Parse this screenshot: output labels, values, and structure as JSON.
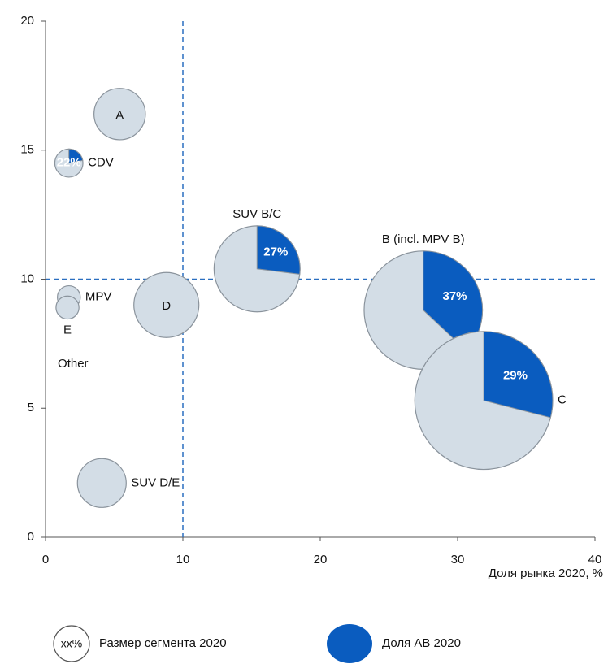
{
  "chart_data": {
    "type": "bubble-pie",
    "x_label": "Доля рынка 2020, %",
    "xlim": [
      0,
      40
    ],
    "xticks": [
      0,
      10,
      20,
      30,
      40
    ],
    "ylim": [
      0,
      20
    ],
    "yticks": [
      0,
      5,
      10,
      15,
      20
    ],
    "vline": 10,
    "hline": 10,
    "bubble_color": "#d3dde6",
    "share_color": "#0a5cbf",
    "points": [
      {
        "name": "A",
        "x": 5.4,
        "y": 16.4,
        "size": 10,
        "label_position": "inside"
      },
      {
        "name": "CDV",
        "x": 1.7,
        "y": 14.5,
        "size": 3,
        "share": 22,
        "share_label": "22%",
        "label_position": "right"
      },
      {
        "name": "SUV B/C",
        "x": 15.4,
        "y": 10.4,
        "size": 28,
        "share": 27,
        "share_label": "27%",
        "label_position": "above"
      },
      {
        "name": "D",
        "x": 8.8,
        "y": 9.0,
        "size": 16,
        "label_position": "inside"
      },
      {
        "name": "MPV",
        "x": 1.7,
        "y": 9.3,
        "size": 2,
        "label_position": "right"
      },
      {
        "name": "E",
        "x": 1.6,
        "y": 8.9,
        "size": 2,
        "label_position": "below"
      },
      {
        "name": "SUV D/E",
        "x": 4.1,
        "y": 2.1,
        "size": 9,
        "label_position": "right"
      },
      {
        "name": "B (incl. MPV B)",
        "x": 27.5,
        "y": 8.8,
        "size": 53,
        "share": 37,
        "share_label": "37%",
        "label_position": "above"
      },
      {
        "name": "C",
        "x": 31.9,
        "y": 5.3,
        "size": 72,
        "share": 29,
        "share_label": "29%",
        "label_position": "right"
      }
    ],
    "annotations": [
      {
        "text": "Other",
        "x": 2.0,
        "y": 6.7
      }
    ],
    "legend": {
      "size_sample": "xx%",
      "size_label": "Размер сегмента 2020",
      "share_label": "Доля АВ 2020"
    }
  }
}
